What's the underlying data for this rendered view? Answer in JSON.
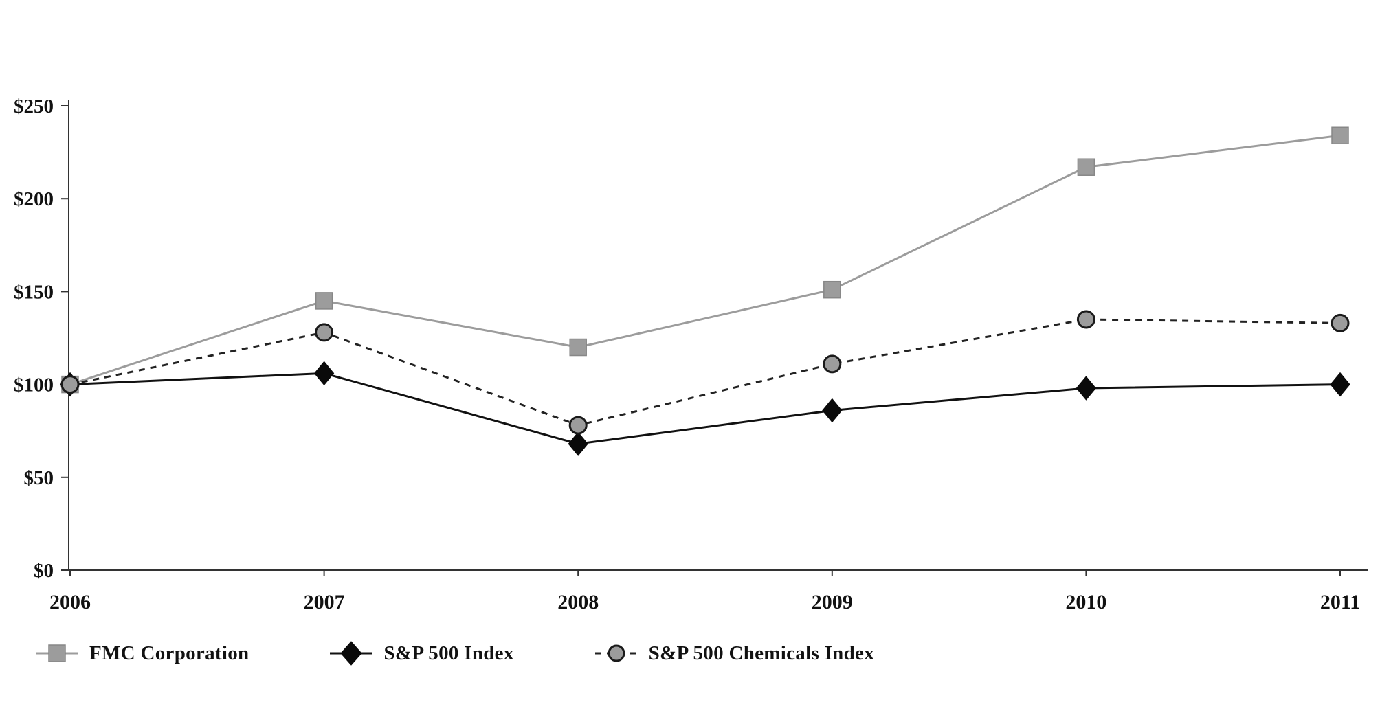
{
  "chart_data": {
    "type": "line",
    "title": "",
    "xlabel": "",
    "ylabel": "",
    "categories": [
      "2006",
      "2007",
      "2008",
      "2009",
      "2010",
      "2011"
    ],
    "ylim": [
      0,
      250
    ],
    "y_ticks": [
      {
        "label": "$0",
        "value": 0
      },
      {
        "label": "$50",
        "value": 50
      },
      {
        "label": "$100",
        "value": 100
      },
      {
        "label": "$150",
        "value": 150
      },
      {
        "label": "$200",
        "value": 200
      },
      {
        "label": "$250",
        "value": 250
      }
    ],
    "grid": false,
    "legend_position": "bottom",
    "series": [
      {
        "name": "FMC Corporation",
        "marker": "square",
        "line_style": "solid",
        "color": "#9c9c9c",
        "marker_fill": "#9c9c9c",
        "marker_stroke": "#878787",
        "values": [
          100,
          145,
          120,
          151,
          217,
          234
        ]
      },
      {
        "name": "S&P 500 Index",
        "marker": "diamond",
        "line_style": "solid",
        "color": "#111111",
        "marker_fill": "#0a0a0a",
        "marker_stroke": "#0a0a0a",
        "values": [
          100,
          106,
          68,
          86,
          98,
          100
        ]
      },
      {
        "name": "S&P 500 Chemicals Index",
        "marker": "circle",
        "line_style": "dashed",
        "color": "#222222",
        "marker_fill": "#9c9c9c",
        "marker_stroke": "#1a1a1a",
        "values": [
          100,
          128,
          78,
          111,
          135,
          133
        ]
      }
    ]
  }
}
